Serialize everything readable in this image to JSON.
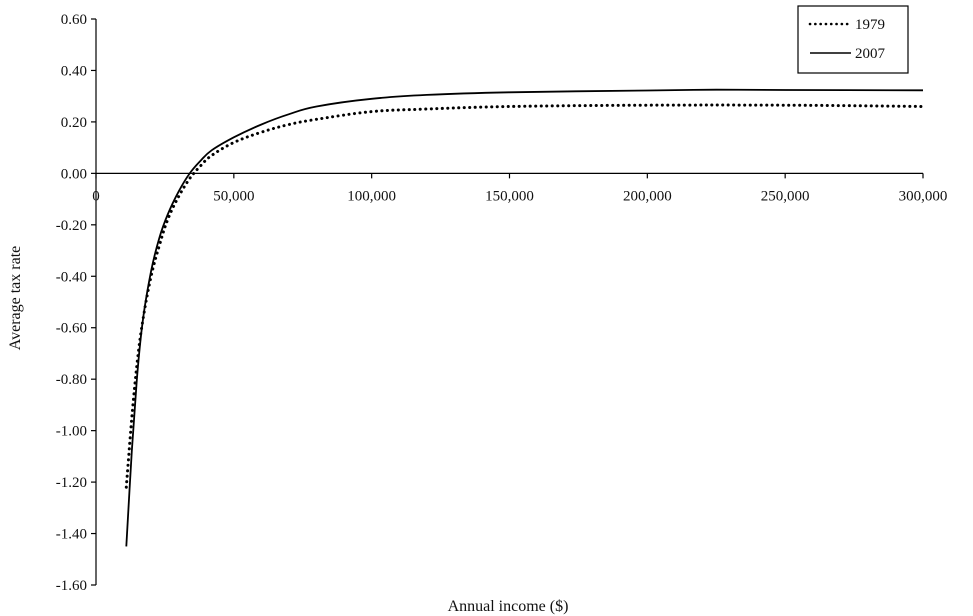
{
  "chart_data": {
    "type": "line",
    "title": "",
    "xlabel": "Annual income ($)",
    "ylabel": "Average tax rate",
    "xlim": [
      0,
      300000
    ],
    "ylim": [
      -1.6,
      0.6
    ],
    "x_ticks": [
      0,
      50000,
      100000,
      150000,
      200000,
      250000,
      300000
    ],
    "x_tick_labels": [
      "0",
      "50,000",
      "100,000",
      "150,000",
      "200,000",
      "250,000",
      "300,000"
    ],
    "y_ticks": [
      0.6,
      0.4,
      0.2,
      0.0,
      -0.2,
      -0.4,
      -0.6,
      -0.8,
      -1.0,
      -1.2,
      -1.4,
      -1.6
    ],
    "y_tick_labels": [
      "0.60",
      "0.40",
      "0.20",
      "0.00",
      "-0.20",
      "-0.40",
      "-0.60",
      "-0.80",
      "-1.00",
      "-1.20",
      "-1.40",
      "-1.60"
    ],
    "grid": false,
    "legend_position": "top-right",
    "series": [
      {
        "name": "1979",
        "style": "dotted",
        "color": "#000000",
        "x": [
          11000,
          13000,
          15000,
          17000,
          20000,
          23000,
          26000,
          30000,
          34000,
          38000,
          42000,
          50000,
          60000,
          70000,
          80000,
          100000,
          120000,
          150000,
          200000,
          250000,
          300000
        ],
        "y": [
          -1.22,
          -0.95,
          -0.73,
          -0.57,
          -0.4,
          -0.28,
          -0.18,
          -0.09,
          -0.02,
          0.03,
          0.07,
          0.12,
          0.16,
          0.19,
          0.21,
          0.24,
          0.25,
          0.26,
          0.265,
          0.265,
          0.26
        ]
      },
      {
        "name": "2007",
        "style": "solid",
        "color": "#000000",
        "x": [
          11000,
          13000,
          15000,
          17000,
          20000,
          23000,
          26000,
          30000,
          34000,
          38000,
          42000,
          50000,
          60000,
          70000,
          80000,
          100000,
          120000,
          150000,
          200000,
          225000,
          250000,
          300000
        ],
        "y": [
          -1.45,
          -1.08,
          -0.78,
          -0.57,
          -0.38,
          -0.25,
          -0.16,
          -0.07,
          0.0,
          0.05,
          0.09,
          0.14,
          0.19,
          0.23,
          0.26,
          0.29,
          0.305,
          0.315,
          0.322,
          0.325,
          0.324,
          0.323
        ]
      }
    ]
  }
}
